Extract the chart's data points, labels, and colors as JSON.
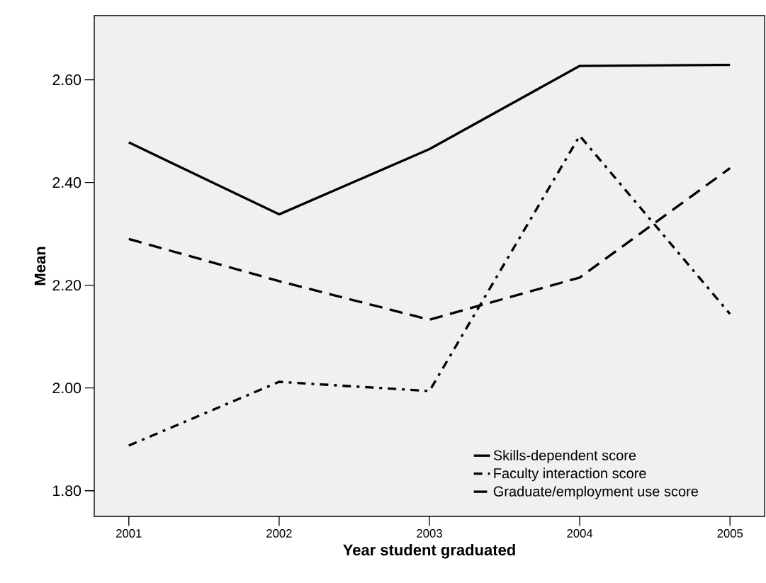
{
  "chart_data": {
    "type": "line",
    "xlabel": "Year student graduated",
    "ylabel": "Mean",
    "x": [
      2001,
      2002,
      2003,
      2004,
      2005
    ],
    "series": [
      {
        "name": "Skills-dependent score",
        "color": "#000000",
        "line_style": "solid",
        "values": [
          2.478,
          2.338,
          2.465,
          2.627,
          2.629
        ]
      },
      {
        "name": "Faculty interaction score",
        "color": "#000000",
        "line_style": "dashdot",
        "values": [
          1.888,
          2.012,
          1.994,
          2.491,
          2.144
        ]
      },
      {
        "name": "Graduate/employment use score",
        "color": "#000000",
        "line_style": "dashed",
        "values": [
          2.29,
          2.208,
          2.133,
          2.215,
          2.428
        ]
      }
    ],
    "xlim": [
      2000.77,
      2005.23
    ],
    "xticks": [
      2001,
      2002,
      2003,
      2004,
      2005
    ],
    "ylim": [
      1.75,
      2.725
    ],
    "yticks": [
      {
        "value": 1.8,
        "label": "1.80"
      },
      {
        "value": 2.0,
        "label": "2.00"
      },
      {
        "value": 2.2,
        "label": "2.20"
      },
      {
        "value": 2.4,
        "label": "2.40"
      },
      {
        "value": 2.6,
        "label": "2.60"
      }
    ],
    "grid": false,
    "legend": "bottom right",
    "marker": "none"
  }
}
